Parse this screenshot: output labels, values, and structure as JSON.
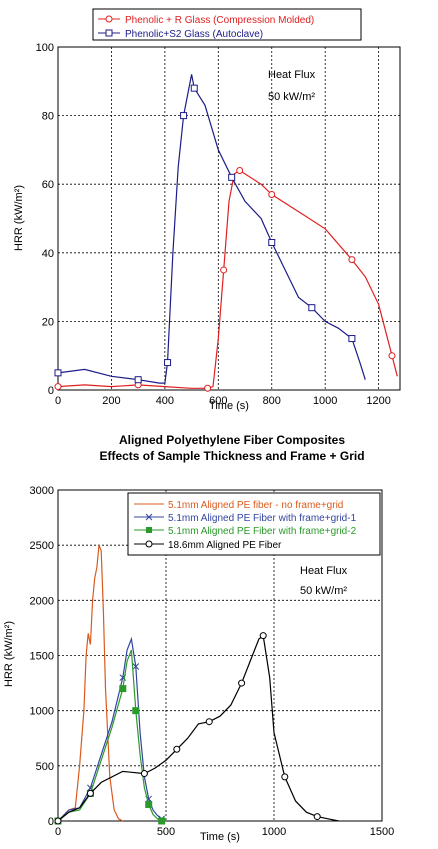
{
  "chart_data": [
    {
      "type": "line",
      "title": "",
      "xlabel": "Time (s)",
      "ylabel": "HRR (kW/m²)",
      "xlim": [
        0,
        1280
      ],
      "ylim": [
        0,
        100
      ],
      "xticks": [
        "0",
        "200",
        "400",
        "600",
        "800",
        "1000",
        "1200"
      ],
      "yticks": [
        "0",
        "20",
        "40",
        "60",
        "80",
        "100"
      ],
      "grid": true,
      "legend_position": "top",
      "annotation": {
        "line1": "Heat Flux",
        "line2": "50 kW/m²"
      },
      "series": [
        {
          "name": "Phenolic + R Glass (Compression Molded)",
          "color": "#e02020",
          "marker": "circle",
          "x": [
            0,
            100,
            200,
            300,
            400,
            500,
            560,
            580,
            600,
            620,
            640,
            660,
            680,
            700,
            760,
            800,
            900,
            1000,
            1100,
            1150,
            1200,
            1250,
            1270
          ],
          "y": [
            1,
            1.5,
            1,
            1.5,
            1,
            0.5,
            0.5,
            1,
            15,
            35,
            55,
            63,
            64,
            63,
            60,
            57,
            52,
            47,
            38,
            33,
            25,
            10,
            4
          ]
        },
        {
          "name": "Phenolic+S2 Glass (Autoclave)",
          "color": "#1c1c8a",
          "marker": "square",
          "x": [
            0,
            100,
            200,
            300,
            380,
            400,
            410,
            430,
            450,
            470,
            490,
            500,
            510,
            550,
            600,
            650,
            700,
            760,
            800,
            850,
            900,
            950,
            1000,
            1050,
            1100,
            1130,
            1150
          ],
          "y": [
            5,
            6,
            4,
            3,
            2,
            2,
            8,
            40,
            65,
            80,
            88,
            92,
            88,
            83,
            70,
            62,
            55,
            50,
            43,
            35,
            27,
            24,
            20,
            18,
            15,
            8,
            3
          ]
        }
      ]
    },
    {
      "type": "line",
      "title": "Aligned Polyethylene Fiber Composites",
      "subtitle": "Effects of Sample Thickness and Frame + Grid",
      "xlabel": "Time (s)",
      "ylabel": "HRR (kW/m²)",
      "xlim": [
        0,
        1500
      ],
      "ylim": [
        0,
        3000
      ],
      "xticks": [
        "0",
        "500",
        "1000",
        "1500"
      ],
      "yticks": [
        "0",
        "500",
        "1000",
        "1500",
        "2000",
        "2500",
        "3000"
      ],
      "grid": true,
      "legend_position": "top",
      "annotation": {
        "line1": "Heat Flux",
        "line2": "50 kW/m²"
      },
      "series": [
        {
          "name": "5.1mm Aligned PE fiber - no frame+grid",
          "color": "#d95a1e",
          "marker": "none",
          "x": [
            0,
            50,
            80,
            100,
            120,
            130,
            140,
            150,
            160,
            170,
            180,
            190,
            200,
            210,
            220,
            240,
            260,
            280,
            300
          ],
          "y": [
            0,
            100,
            120,
            500,
            1000,
            1500,
            1700,
            1600,
            2000,
            2200,
            2300,
            2500,
            2450,
            1900,
            1200,
            400,
            100,
            20,
            0
          ]
        },
        {
          "name": "5.1mm Aligned PE Fiber with frame+grid-1",
          "color": "#3344a0",
          "marker": "x",
          "x": [
            0,
            50,
            100,
            150,
            200,
            250,
            300,
            320,
            340,
            360,
            380,
            400,
            420,
            440,
            460,
            480,
            500
          ],
          "y": [
            0,
            100,
            120,
            300,
            600,
            900,
            1300,
            1550,
            1650,
            1400,
            800,
            400,
            200,
            100,
            50,
            20,
            0
          ]
        },
        {
          "name": "5.1mm Aligned PE Fiber with frame+grid-2",
          "color": "#2a9a2a",
          "marker": "square",
          "x": [
            0,
            50,
            100,
            150,
            200,
            250,
            300,
            320,
            340,
            360,
            380,
            400,
            420,
            440,
            460,
            480
          ],
          "y": [
            0,
            80,
            100,
            250,
            550,
            850,
            1200,
            1450,
            1550,
            1000,
            600,
            300,
            150,
            60,
            20,
            0
          ]
        },
        {
          "name": "18.6mm Aligned PE Fiber",
          "color": "#000000",
          "marker": "circle",
          "x": [
            0,
            50,
            100,
            150,
            200,
            300,
            400,
            450,
            500,
            550,
            600,
            650,
            700,
            750,
            800,
            850,
            900,
            930,
            950,
            980,
            1000,
            1050,
            1100,
            1150,
            1200,
            1250,
            1300
          ],
          "y": [
            0,
            80,
            120,
            250,
            350,
            450,
            430,
            480,
            550,
            650,
            750,
            880,
            900,
            950,
            1050,
            1250,
            1500,
            1650,
            1680,
            1300,
            800,
            400,
            180,
            80,
            40,
            20,
            0
          ]
        }
      ]
    }
  ]
}
